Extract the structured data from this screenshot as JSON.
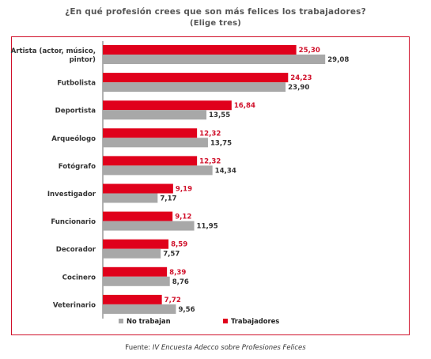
{
  "title": "¿En qué profesión crees que son más felices los trabajadores?",
  "subtitle": "(Elige tres)",
  "source_prefix": "Fuente: ",
  "source_italic": "IV Encuesta Adecco sobre Profesiones Felices",
  "colors": {
    "frame": "#d0102a",
    "trabajadores": "#e0001b",
    "no_trabajan": "#a8a8a8",
    "label_red": "#d0102a",
    "label_dark": "#333333"
  },
  "chart_data": {
    "type": "bar",
    "orientation": "horizontal",
    "categories": [
      [
        "Artista (actor, músico,",
        "pintor)"
      ],
      [
        "Futbolista"
      ],
      [
        "Deportista"
      ],
      [
        "Arqueólogo"
      ],
      [
        "Fotógrafo"
      ],
      [
        "Investigador"
      ],
      [
        "Funcionario"
      ],
      [
        "Decorador"
      ],
      [
        "Cocinero"
      ],
      [
        "Veterinario"
      ]
    ],
    "series": [
      {
        "name": "Trabajadores",
        "values": [
          25.3,
          24.23,
          16.84,
          12.32,
          12.32,
          9.19,
          9.12,
          8.59,
          8.39,
          7.72
        ],
        "labels": [
          "25,30",
          "24,23",
          "16,84",
          "12,32",
          "12,32",
          "9,19",
          "9,12",
          "8,59",
          "8,39",
          "7,72"
        ]
      },
      {
        "name": "No trabajan",
        "values": [
          29.08,
          23.9,
          13.55,
          13.75,
          14.34,
          7.17,
          11.95,
          7.57,
          8.76,
          9.56
        ],
        "labels": [
          "29,08",
          "23,90",
          "13,55",
          "13,75",
          "14,34",
          "7,17",
          "11,95",
          "7,57",
          "8,76",
          "9,56"
        ]
      }
    ],
    "legend": [
      "No trabajan",
      "Trabajadores"
    ],
    "legend_position": "bottom",
    "xlim": [
      0,
      35
    ],
    "grid": false
  }
}
